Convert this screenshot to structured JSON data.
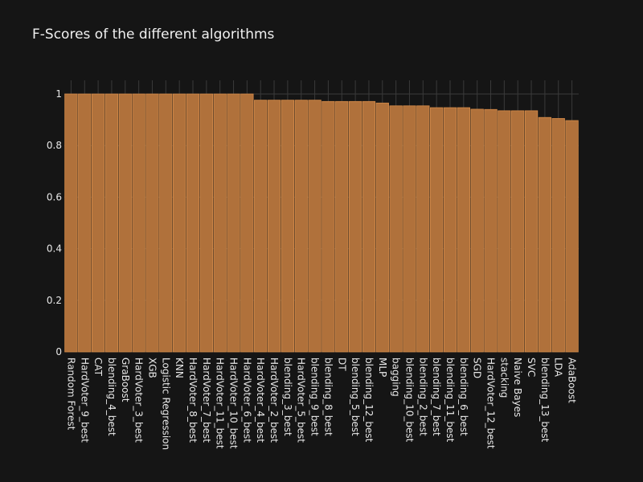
{
  "chart_data": {
    "type": "bar",
    "title": "F-Scores of the different algorithms",
    "xlabel": "",
    "ylabel": "",
    "ylim": [
      0,
      1.05
    ],
    "yticks": [
      0,
      0.2,
      0.4,
      0.6,
      0.8,
      1
    ],
    "grid": true,
    "legend": "none",
    "colors": {
      "background": "#151515",
      "bar_fill": "#b0713b",
      "bar_edge": "#d68c4a",
      "grid": "#3a3a3a",
      "text": "#e8e8e8"
    },
    "categories": [
      "Random Forest",
      "HardVoter_9_best",
      "CAT",
      "blending_4_best",
      "GraBoost",
      "HardVoter_3_best",
      "XGB",
      "Logistic Regression",
      "KNN",
      "HardVoter_8_best",
      "HardVoter_7_best",
      "HardVoter_11_best",
      "HardVoter_10_best",
      "HardVoter_6_best",
      "HardVoter_4_best",
      "HardVoter_2_best",
      "blending_3_best",
      "HardVoter_5_best",
      "blending_9_best",
      "blending_8_best",
      "DT",
      "blending_5_best",
      "blending_12_best",
      "MLP",
      "bagging",
      "blending_10_best",
      "blending_2_best",
      "blending_7_best",
      "blending_11_best",
      "blending_6_best",
      "SGD",
      "HardVoter_12_best",
      "stacking",
      "Naive Bayes",
      "SVC",
      "blending_13_best",
      "LDA",
      "AdaBoost"
    ],
    "values": [
      1.0,
      1.0,
      1.0,
      1.0,
      1.0,
      1.0,
      1.0,
      1.0,
      1.0,
      1.0,
      1.0,
      1.0,
      1.0,
      1.0,
      0.976,
      0.976,
      0.976,
      0.976,
      0.976,
      0.971,
      0.971,
      0.971,
      0.971,
      0.965,
      0.954,
      0.954,
      0.954,
      0.947,
      0.947,
      0.947,
      0.941,
      0.94,
      0.935,
      0.935,
      0.935,
      0.909,
      0.905,
      0.897
    ]
  }
}
